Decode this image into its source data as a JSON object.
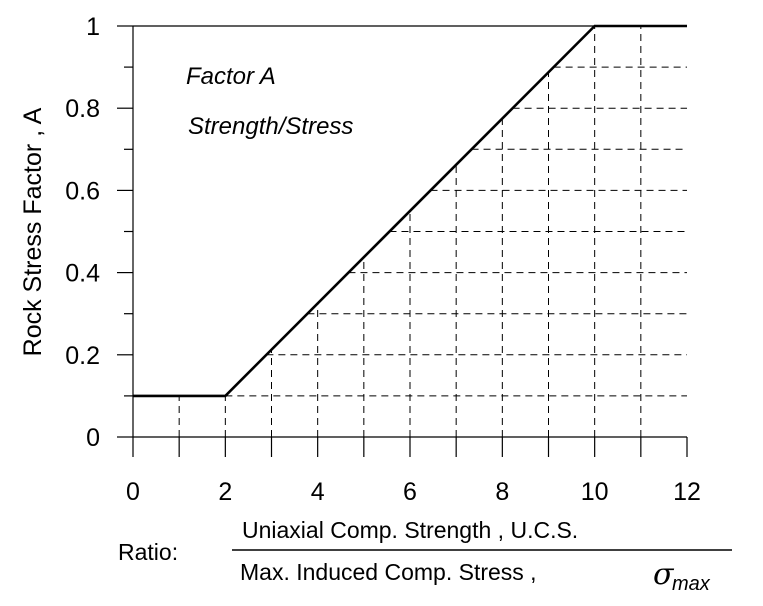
{
  "chart_data": {
    "type": "line",
    "title": "",
    "ylabel": "Rock Stress Factor , A",
    "xlabel": {
      "prefix": "Ratio:",
      "numerator": "Uniaxial Comp. Strength , U.C.S.",
      "denominator": "Max. Induced Comp. Stress ,",
      "symbol": "σ",
      "subscript": "max"
    },
    "xlim": [
      0,
      12
    ],
    "ylim": [
      0,
      1
    ],
    "xticks": [
      0,
      2,
      4,
      6,
      8,
      10,
      12
    ],
    "yticks": [
      0,
      0.2,
      0.4,
      0.6,
      0.8,
      1
    ],
    "xtick_labels": [
      "0",
      "2",
      "4",
      "6",
      "8",
      "10",
      "12"
    ],
    "ytick_labels": [
      "0",
      "0.2",
      "0.4",
      "0.6",
      "0.8",
      "1"
    ],
    "annotations": [
      "Factor A",
      "Strength/Stress"
    ],
    "grid": "dashed",
    "series": [
      {
        "x": [
          0,
          2,
          10,
          12
        ],
        "y": [
          0.1,
          0.1,
          1,
          1
        ]
      }
    ]
  }
}
